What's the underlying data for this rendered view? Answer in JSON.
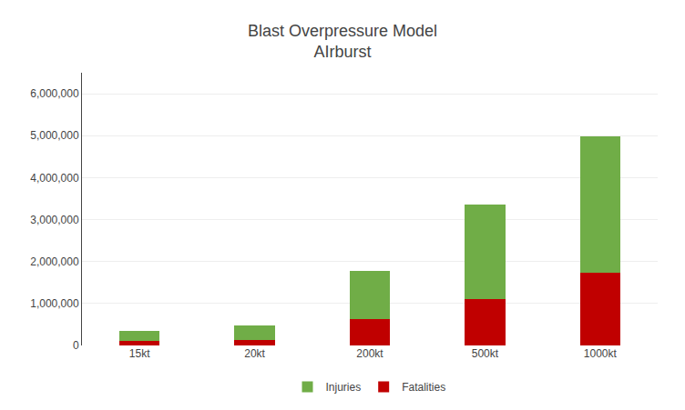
{
  "chart_data": {
    "type": "bar",
    "stacked": true,
    "title": "Blast Overpressure Model",
    "subtitle": "AIrburst",
    "categories": [
      "15kt",
      "20kt",
      "200kt",
      "500kt",
      "1000kt"
    ],
    "series": [
      {
        "name": "Fatalities",
        "color": "#c00000",
        "values": [
          100000,
          130000,
          620000,
          1100000,
          1730000
        ]
      },
      {
        "name": "Injuries",
        "color": "#70ad47",
        "values": [
          255000,
          355000,
          1150000,
          2250000,
          3250000
        ]
      }
    ],
    "ylim": [
      0,
      6500000
    ],
    "yticks": [
      0,
      {
        "value": 1000000,
        "label": "1,000,000"
      },
      {
        "value": 2000000,
        "label": "2,000,000"
      },
      {
        "value": 3000000,
        "label": "3,000,000"
      },
      {
        "value": 4000000,
        "label": "4,000,000"
      },
      {
        "value": 5000000,
        "label": "5,000,000"
      },
      {
        "value": 6000000,
        "label": "6,000,000"
      }
    ],
    "grid": true,
    "legend": "bottom"
  }
}
